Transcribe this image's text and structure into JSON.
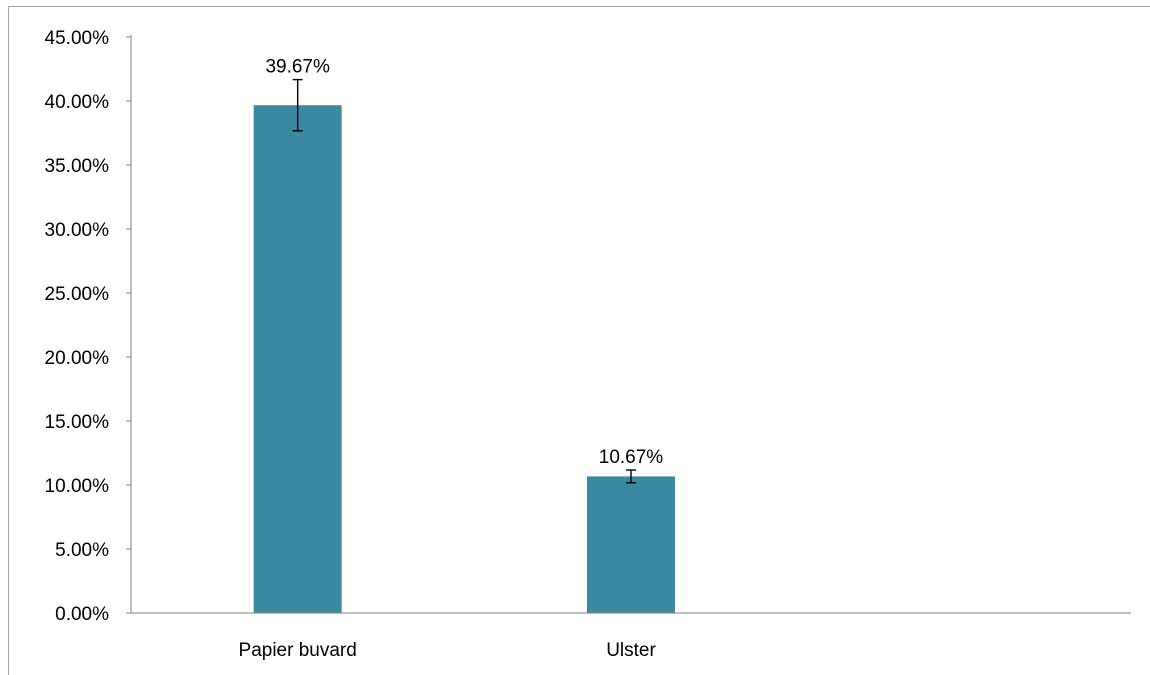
{
  "chart_data": {
    "type": "bar",
    "categories": [
      "Papier buvard",
      "Ulster",
      ""
    ],
    "values": [
      39.67,
      10.67,
      null
    ],
    "value_labels": [
      "39.67%",
      "10.67%",
      ""
    ],
    "error_bars": [
      {
        "low": 37.67,
        "high": 41.67
      },
      {
        "low": 10.17,
        "high": 11.17
      },
      null
    ],
    "y_ticks": [
      "0.00%",
      "5.00%",
      "10.00%",
      "15.00%",
      "20.00%",
      "25.00%",
      "30.00%",
      "35.00%",
      "40.00%",
      "45.00%"
    ],
    "ylim": [
      0,
      45
    ],
    "grid": false,
    "legend": "none",
    "title": "",
    "xlabel": "",
    "ylabel": "",
    "colors": {
      "bar": "#3b89a1",
      "axis": "#7f7f7f",
      "error_bar": "#000000"
    }
  }
}
